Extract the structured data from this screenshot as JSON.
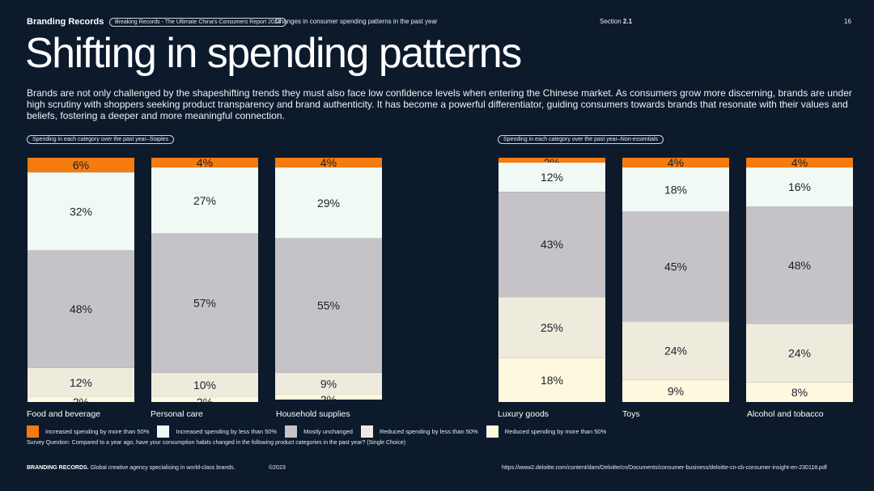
{
  "header": {
    "brand": "Branding Records",
    "report_pill": "Breaking Records - The Ultimate China's Consumers Report 2024",
    "subtitle": "Changes in consumer spending patterns in the past year",
    "section_label": "Section",
    "section_number": "2.1",
    "page_number": "16"
  },
  "title": "Shifting in spending patterns",
  "intro": "Brands are not only challenged by the shapeshifting trends they must also face low confidence levels when entering the Chinese market. As consumers grow more discerning, brands are under high scrutiny with shoppers seeking product transparency and brand authenticity. It has become a powerful differentiator, guiding consumers towards brands that resonate with their values and beliefs, fostering a deeper and more meaningful connection.",
  "group_labels": {
    "staples": "Spending in each category over the past year–Staples",
    "non_essentials": "Spending in each category over the past year–Non-essentials"
  },
  "chart_data": {
    "type": "bar",
    "stacked": true,
    "orientation": "vertical",
    "unit": "%",
    "ylim": [
      0,
      100
    ],
    "categories": [
      "Food and beverage",
      "Personal care",
      "Household supplies",
      "Luxury goods",
      "Toys",
      "Alcohol and tobacco"
    ],
    "groups": [
      {
        "name": "Staples",
        "categories": [
          "Food and beverage",
          "Personal care",
          "Household supplies"
        ]
      },
      {
        "name": "Non-essentials",
        "categories": [
          "Luxury goods",
          "Toys",
          "Alcohol and tobacco"
        ]
      }
    ],
    "series": [
      {
        "name": "Increased spending by more than 50%",
        "color": "#f47b0e",
        "values": [
          6,
          4,
          4,
          2,
          4,
          4
        ]
      },
      {
        "name": "Increased spending by less than 50%",
        "color": "#f1f9f4",
        "values": [
          32,
          27,
          29,
          12,
          18,
          16
        ]
      },
      {
        "name": "Mostly unchanged",
        "color": "#c5c3c8",
        "values": [
          48,
          57,
          55,
          43,
          45,
          48
        ]
      },
      {
        "name": "Reduced spending by less than 50%",
        "color": "#efebdc",
        "values": [
          12,
          10,
          9,
          25,
          24,
          24
        ]
      },
      {
        "name": "Reduced spending by more than 50%",
        "color": "#fdf8de",
        "values": [
          2,
          2,
          2,
          18,
          9,
          8
        ]
      }
    ]
  },
  "survey_question": "Survey Question: Compared to a year ago, have your consumption habits changed in the following product categories in the past year? (Single Choice)",
  "footer": {
    "brand": "BRANDING RECORDS.",
    "tagline": "Global creative agency specialising in world-class brands.",
    "copyright": "©2023",
    "source_url": "https://www2.deloitte.com/content/dam/Deloitte/cn/Documents/consumer-business/deloitte-cn-cb-consumer-insight-en-230118.pdf"
  }
}
